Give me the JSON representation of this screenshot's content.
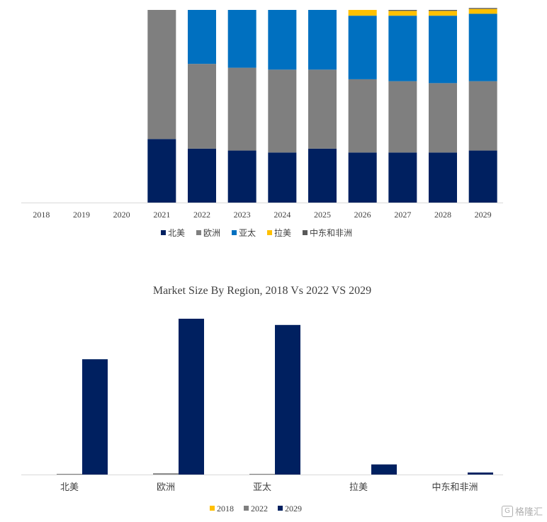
{
  "chart_data": [
    {
      "type": "bar",
      "stacked": true,
      "title": "",
      "categories": [
        "2018",
        "2019",
        "2020",
        "2021",
        "2022",
        "2023",
        "2024",
        "2025",
        "2026",
        "2027",
        "2028",
        "2029"
      ],
      "series": [
        {
          "name": "北美",
          "color": "#002060",
          "values": [
            0,
            0,
            0,
            33,
            28,
            27,
            26,
            28,
            26,
            26,
            26,
            27
          ]
        },
        {
          "name": "欧洲",
          "color": "#7f7f7f",
          "values": [
            0,
            0,
            0,
            67,
            44,
            43,
            43,
            41,
            38,
            37,
            36,
            36
          ]
        },
        {
          "name": "亚太",
          "color": "#0070c0",
          "values": [
            0,
            0,
            0,
            0,
            28,
            30,
            31,
            31,
            33,
            34,
            35,
            35
          ]
        },
        {
          "name": "拉美",
          "color": "#ffc000",
          "values": [
            0,
            0,
            0,
            0,
            0,
            0,
            0,
            0,
            3,
            2.5,
            2.5,
            2.5
          ]
        },
        {
          "name": "中东和非洲",
          "color": "#595959",
          "values": [
            0,
            0,
            0,
            0,
            0,
            0,
            0,
            0,
            0,
            0.5,
            0.5,
            0.5
          ]
        }
      ],
      "ylim": [
        0,
        100
      ],
      "legend": "bottom"
    },
    {
      "type": "bar",
      "title": "Market Size By Region, 2018 Vs 2022 VS 2029",
      "categories": [
        "北美",
        "欧洲",
        "亚太",
        "拉美",
        "中东和非洲"
      ],
      "series": [
        {
          "name": "2018",
          "color": "#ffc000",
          "values": [
            0,
            0,
            0,
            0,
            0
          ]
        },
        {
          "name": "2022",
          "color": "#7f7f7f",
          "values": [
            0.3,
            0.8,
            0.3,
            0,
            0
          ]
        },
        {
          "name": "2029",
          "color": "#002060",
          "values": [
            74,
            100,
            96,
            6.5,
            1.3
          ]
        }
      ],
      "ylim": [
        0,
        100
      ],
      "legend": "bottom"
    }
  ],
  "watermark": {
    "icon": "G",
    "text": "格隆汇"
  }
}
